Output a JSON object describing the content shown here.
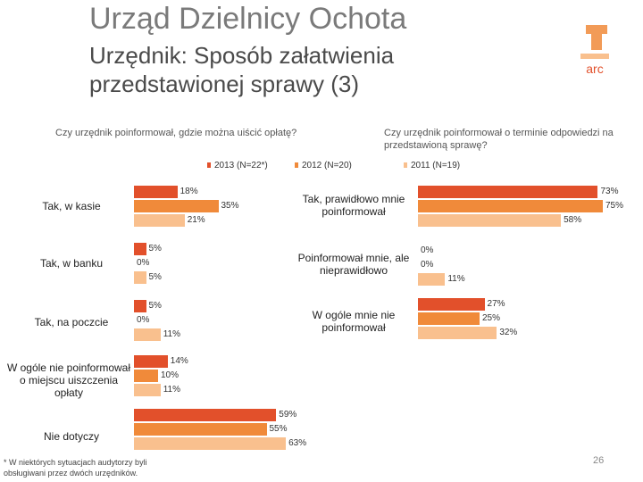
{
  "header": {
    "title": "Urząd Dzielnicy Ochota",
    "subtitle": "Urzędnik: Sposób załatwienia przedstawionej sprawy (3)"
  },
  "logo": {
    "text": "arc"
  },
  "colors": {
    "s2013": "#E2502B",
    "s2012": "#F08A3A",
    "s2011": "#F9C08E"
  },
  "chart_data": [
    {
      "type": "bar",
      "orientation": "horizontal",
      "title": "Czy urzędnik poinformował, gdzie można uiścić opłatę?",
      "categories": [
        "Tak, w kasie",
        "Tak, w banku",
        "Tak, na poczcie",
        "W ogóle nie poinformował o miejscu uiszczenia opłaty",
        "Nie dotyczy"
      ],
      "series": [
        {
          "name": "2013 (N=22*)",
          "values": [
            18,
            5,
            5,
            14,
            59
          ]
        },
        {
          "name": "2012 (N=20)",
          "values": [
            35,
            0,
            0,
            10,
            55
          ]
        },
        {
          "name": "2011 (N=19)",
          "values": [
            21,
            5,
            11,
            11,
            63
          ]
        }
      ],
      "xlim": [
        0,
        100
      ]
    },
    {
      "type": "bar",
      "orientation": "horizontal",
      "title": "Czy urzędnik poinformował o terminie odpowiedzi na przedstawioną sprawę?",
      "categories": [
        "Tak, prawidłowo mnie poinformował",
        "Poinformował mnie, ale nieprawidłowo",
        "W ogóle mnie nie poinformował"
      ],
      "series": [
        {
          "name": "2013 (N=22*)",
          "values": [
            73,
            0,
            27
          ]
        },
        {
          "name": "2012 (N=20)",
          "values": [
            75,
            0,
            25
          ]
        },
        {
          "name": "2011 (N=19)",
          "values": [
            58,
            11,
            32
          ]
        }
      ],
      "xlim": [
        0,
        100
      ]
    }
  ],
  "footnote": "* W niektórych sytuacjach audytorzy byli obsługiwani przez dwóch urzędników.",
  "page_number": "26"
}
